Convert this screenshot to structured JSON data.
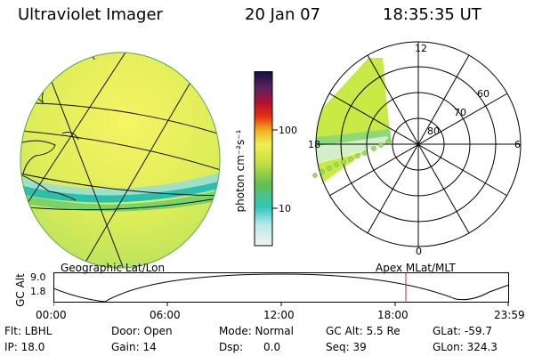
{
  "header": {
    "title": "Ultraviolet Imager",
    "date": "20 Jan 07",
    "time": "18:35:35 UT"
  },
  "colorbar": {
    "label": "photon cm⁻²s⁻¹",
    "ticks": [
      "100",
      "10"
    ]
  },
  "polar": {
    "mlt_labels": [
      "12",
      "6",
      "0",
      "18"
    ],
    "lat_labels": [
      "60",
      "70",
      "80"
    ]
  },
  "altplot": {
    "left_label": "Geographic Lat/Lon",
    "right_label": "Apex MLat/MLT",
    "y_title": "GC Alt",
    "y_ticks": [
      "9.0",
      "1.8"
    ],
    "x_ticks": [
      "00:00",
      "06:00",
      "12:00",
      "18:00",
      "23:59"
    ],
    "marker_color": "#b03030"
  },
  "info": {
    "row1": {
      "flt": "Flt: LBHL",
      "door": "Door: Open",
      "mode": "Mode: Normal",
      "gcalt": "GC Alt: 5.5 Re",
      "glat": "GLat: -59.7"
    },
    "row2": {
      "ip": "IP: 18.0",
      "gain": "Gain: 14",
      "dsp": "Dsp:      0.0",
      "seq": "Seq: 39",
      "glon": "GLon: 324.3"
    }
  }
}
